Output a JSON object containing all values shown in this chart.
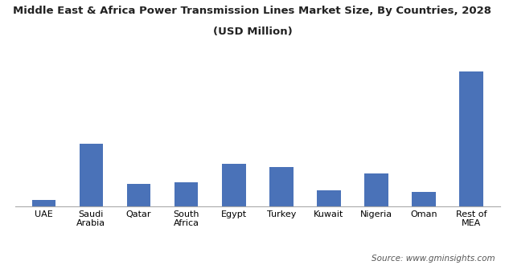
{
  "title_line1": "Middle East & Africa Power Transmission Lines Market Size, By Countries, 2028",
  "title_line2": "(USD Million)",
  "categories": [
    "UAE",
    "Saudi\nArabia",
    "Qatar",
    "South\nAfrica",
    "Egypt",
    "Turkey",
    "Kuwait",
    "Nigeria",
    "Oman",
    "Rest of\nMEA"
  ],
  "values": [
    4,
    38,
    14,
    15,
    26,
    24,
    10,
    20,
    9,
    82
  ],
  "bar_color": "#4a72b8",
  "background_color": "#ffffff",
  "source_text": "Source: www.gminsights.com",
  "ylim": [
    0,
    90
  ],
  "bar_width": 0.5,
  "title_fontsize": 9.5,
  "axis_label_fontsize": 8,
  "source_fontsize": 7.5
}
